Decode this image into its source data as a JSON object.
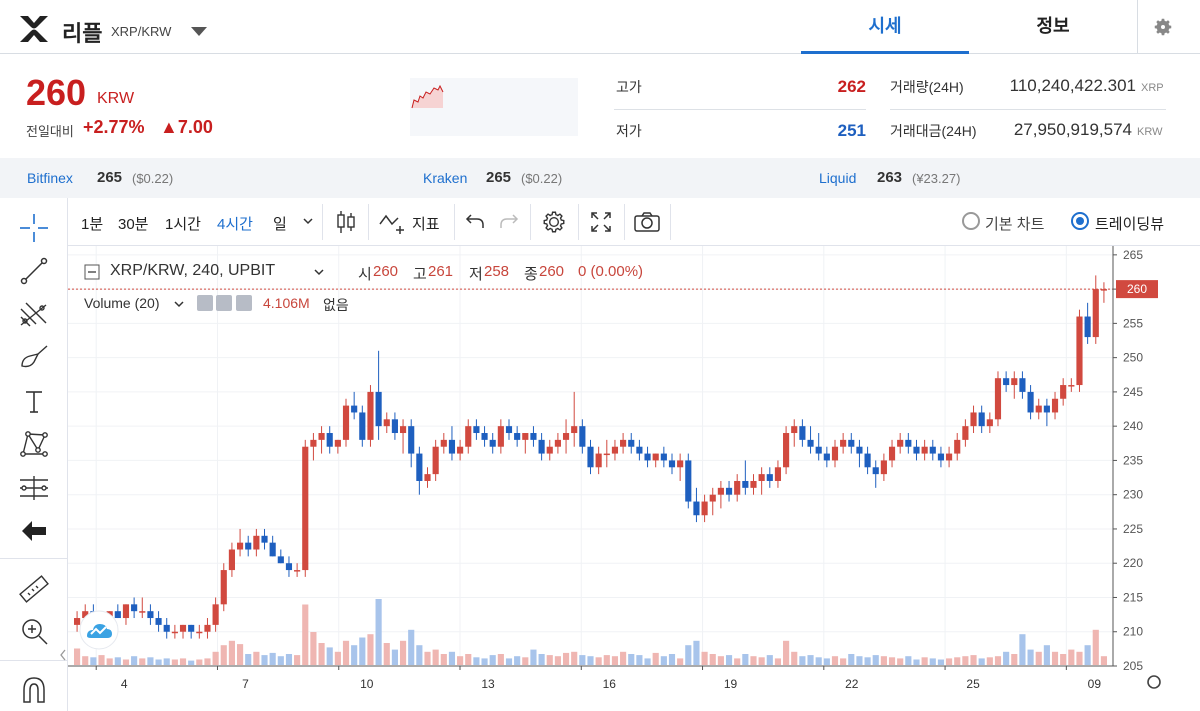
{
  "header": {
    "coin_name": "리플",
    "pair": "XRP/KRW",
    "tabs": [
      {
        "label": "시세",
        "active": true
      },
      {
        "label": "정보",
        "active": false
      }
    ]
  },
  "summary": {
    "price": "260",
    "unit": "KRW",
    "change_label": "전일대비",
    "change_pct": "+2.77%",
    "change_abs": "▲7.00",
    "high_label": "고가",
    "high": "262",
    "low_label": "저가",
    "low": "251",
    "volume_label": "거래량(24H)",
    "volume": "110,240,422.301",
    "volume_unit": "XRP",
    "amount_label": "거래대금(24H)",
    "amount": "27,950,919,574",
    "amount_unit": "KRW"
  },
  "exchanges": [
    {
      "name": "Bitfinex",
      "price": "265",
      "sub": "($0.22)"
    },
    {
      "name": "Kraken",
      "price": "265",
      "sub": "($0.22)"
    },
    {
      "name": "Liquid",
      "price": "263",
      "sub": "(¥23.27)"
    }
  ],
  "toolbar": {
    "intervals": [
      "1분",
      "30분",
      "1시간",
      "4시간",
      "일"
    ],
    "active_interval": "4시간",
    "indicator_label": "지표",
    "basic_chart_label": "기본 차트",
    "tradingview_label": "트레이딩뷰"
  },
  "legend": {
    "symbol": "XRP/KRW, 240, UPBIT",
    "o_label": "시",
    "o": "260",
    "h_label": "고",
    "h": "261",
    "l_label": "저",
    "l": "258",
    "c_label": "종",
    "c": "260",
    "change": "0 (0.00%)",
    "volume_title": "Volume (20)",
    "volume_value": "4.106M",
    "volume_none": "없음"
  },
  "colors": {
    "up": "#d1493f",
    "down": "#1e5fbf",
    "accent": "#1e6fce",
    "price_red": "#c81f1f"
  },
  "icons": [
    "crosshair-icon",
    "trendline-icon",
    "fib-icon",
    "brush-icon",
    "text-icon",
    "pattern-icon",
    "measure-icon",
    "back-arrow-icon",
    "ruler-icon",
    "zoom-in-icon",
    "magnet-icon",
    "candles-icon",
    "indicator-icon",
    "undo-icon",
    "redo-icon",
    "settings-icon",
    "fullscreen-icon",
    "camera-icon",
    "gear-icon"
  ],
  "chart_data": {
    "type": "candlestick",
    "current_price_label": "260",
    "y_ticks": [
      "265",
      "260",
      "255",
      "250",
      "245",
      "240",
      "235",
      "230",
      "225",
      "220",
      "215",
      "210",
      "205"
    ],
    "ylim": [
      205,
      266
    ],
    "x_ticks": [
      "4",
      "7",
      "10",
      "13",
      "16",
      "19",
      "22",
      "25",
      "09"
    ],
    "candles": [
      [
        211,
        213,
        210,
        212
      ],
      [
        212,
        214,
        211,
        213
      ],
      [
        213,
        214,
        211,
        211
      ],
      [
        211,
        213,
        210,
        212
      ],
      [
        212,
        213,
        211,
        213
      ],
      [
        213,
        214,
        212,
        212
      ],
      [
        212,
        214,
        211,
        214
      ],
      [
        214,
        215,
        212,
        213
      ],
      [
        213,
        215,
        212,
        213
      ],
      [
        213,
        214,
        211,
        212
      ],
      [
        212,
        213,
        210,
        211
      ],
      [
        211,
        212,
        209,
        210
      ],
      [
        210,
        211,
        209,
        210
      ],
      [
        210,
        211,
        209,
        211
      ],
      [
        211,
        211,
        209,
        210
      ],
      [
        210,
        211,
        209,
        210
      ],
      [
        210,
        212,
        209,
        211
      ],
      [
        211,
        215,
        210,
        214
      ],
      [
        214,
        220,
        213,
        219
      ],
      [
        219,
        223,
        218,
        222
      ],
      [
        222,
        225,
        221,
        223
      ],
      [
        223,
        224,
        221,
        222
      ],
      [
        222,
        225,
        221,
        224
      ],
      [
        224,
        225,
        222,
        223
      ],
      [
        223,
        224,
        221,
        221
      ],
      [
        221,
        222,
        220,
        220
      ],
      [
        220,
        221,
        218,
        219
      ],
      [
        219,
        220,
        218,
        219
      ],
      [
        219,
        238,
        218,
        237
      ],
      [
        237,
        239,
        235,
        238
      ],
      [
        238,
        240,
        236,
        239
      ],
      [
        239,
        240,
        236,
        237
      ],
      [
        237,
        238,
        236,
        238
      ],
      [
        238,
        244,
        237,
        243
      ],
      [
        243,
        245,
        241,
        242
      ],
      [
        242,
        243,
        237,
        238
      ],
      [
        238,
        246,
        237,
        245
      ],
      [
        245,
        251,
        238,
        240
      ],
      [
        240,
        242,
        239,
        241
      ],
      [
        241,
        242,
        238,
        239
      ],
      [
        239,
        241,
        236,
        240
      ],
      [
        240,
        241,
        234,
        236
      ],
      [
        236,
        237,
        230,
        232
      ],
      [
        232,
        234,
        231,
        233
      ],
      [
        233,
        238,
        232,
        237
      ],
      [
        237,
        239,
        236,
        238
      ],
      [
        238,
        240,
        235,
        236
      ],
      [
        236,
        238,
        235,
        237
      ],
      [
        237,
        241,
        236,
        240
      ],
      [
        240,
        241,
        238,
        239
      ],
      [
        239,
        240,
        237,
        238
      ],
      [
        238,
        239,
        236,
        237
      ],
      [
        237,
        241,
        236,
        240
      ],
      [
        240,
        241,
        238,
        239
      ],
      [
        239,
        240,
        237,
        238
      ],
      [
        238,
        239,
        236,
        239
      ],
      [
        239,
        240,
        237,
        238
      ],
      [
        238,
        239,
        235,
        236
      ],
      [
        236,
        238,
        235,
        237
      ],
      [
        237,
        239,
        236,
        238
      ],
      [
        238,
        241,
        236,
        239
      ],
      [
        239,
        245,
        237,
        240
      ],
      [
        240,
        241,
        236,
        237
      ],
      [
        237,
        238,
        233,
        234
      ],
      [
        234,
        237,
        233,
        236
      ],
      [
        236,
        238,
        234,
        236
      ],
      [
        236,
        238,
        235,
        237
      ],
      [
        237,
        239,
        236,
        238
      ],
      [
        238,
        239,
        236,
        237
      ],
      [
        237,
        238,
        235,
        236
      ],
      [
        236,
        237,
        234,
        235
      ],
      [
        235,
        236,
        234,
        236
      ],
      [
        236,
        237,
        234,
        235
      ],
      [
        235,
        236,
        233,
        234
      ],
      [
        234,
        236,
        232,
        235
      ],
      [
        235,
        236,
        228,
        229
      ],
      [
        229,
        231,
        226,
        227
      ],
      [
        227,
        230,
        226,
        229
      ],
      [
        229,
        231,
        227,
        230
      ],
      [
        230,
        232,
        228,
        231
      ],
      [
        231,
        232,
        229,
        230
      ],
      [
        230,
        233,
        229,
        232
      ],
      [
        232,
        235,
        230,
        231
      ],
      [
        231,
        233,
        230,
        232
      ],
      [
        232,
        234,
        230,
        233
      ],
      [
        233,
        234,
        231,
        232
      ],
      [
        232,
        235,
        231,
        234
      ],
      [
        234,
        240,
        233,
        239
      ],
      [
        239,
        241,
        237,
        240
      ],
      [
        240,
        241,
        237,
        238
      ],
      [
        238,
        240,
        236,
        237
      ],
      [
        237,
        239,
        235,
        236
      ],
      [
        236,
        237,
        234,
        235
      ],
      [
        235,
        238,
        234,
        237
      ],
      [
        237,
        239,
        236,
        238
      ],
      [
        238,
        239,
        236,
        237
      ],
      [
        237,
        238,
        234,
        236
      ],
      [
        236,
        237,
        233,
        234
      ],
      [
        234,
        235,
        231,
        233
      ],
      [
        233,
        236,
        232,
        235
      ],
      [
        235,
        238,
        234,
        237
      ],
      [
        237,
        239,
        236,
        238
      ],
      [
        238,
        239,
        236,
        237
      ],
      [
        237,
        238,
        235,
        236
      ],
      [
        236,
        238,
        235,
        237
      ],
      [
        237,
        238,
        235,
        236
      ],
      [
        236,
        237,
        234,
        235
      ],
      [
        235,
        237,
        234,
        236
      ],
      [
        236,
        239,
        235,
        238
      ],
      [
        238,
        241,
        237,
        240
      ],
      [
        240,
        243,
        239,
        242
      ],
      [
        242,
        243,
        239,
        240
      ],
      [
        240,
        242,
        239,
        241
      ],
      [
        241,
        248,
        240,
        247
      ],
      [
        247,
        248,
        245,
        246
      ],
      [
        246,
        248,
        244,
        247
      ],
      [
        247,
        248,
        244,
        245
      ],
      [
        245,
        246,
        241,
        242
      ],
      [
        242,
        244,
        241,
        243
      ],
      [
        243,
        244,
        240,
        242
      ],
      [
        242,
        245,
        241,
        244
      ],
      [
        244,
        247,
        243,
        246
      ],
      [
        246,
        247,
        245,
        246
      ],
      [
        246,
        257,
        245,
        256
      ],
      [
        256,
        258,
        252,
        253
      ],
      [
        253,
        262,
        252,
        260
      ],
      [
        260,
        261,
        258,
        260
      ]
    ],
    "volumes": [
      0.15,
      0.08,
      0.07,
      0.09,
      0.06,
      0.07,
      0.05,
      0.08,
      0.06,
      0.07,
      0.05,
      0.06,
      0.05,
      0.06,
      0.04,
      0.05,
      0.06,
      0.12,
      0.18,
      0.22,
      0.19,
      0.1,
      0.12,
      0.09,
      0.11,
      0.08,
      0.1,
      0.09,
      0.55,
      0.3,
      0.2,
      0.16,
      0.12,
      0.22,
      0.18,
      0.25,
      0.28,
      0.6,
      0.2,
      0.14,
      0.22,
      0.32,
      0.18,
      0.12,
      0.14,
      0.1,
      0.12,
      0.08,
      0.1,
      0.07,
      0.06,
      0.09,
      0.1,
      0.06,
      0.08,
      0.07,
      0.14,
      0.1,
      0.09,
      0.08,
      0.11,
      0.12,
      0.09,
      0.08,
      0.07,
      0.09,
      0.08,
      0.12,
      0.1,
      0.09,
      0.06,
      0.11,
      0.08,
      0.1,
      0.06,
      0.18,
      0.22,
      0.12,
      0.1,
      0.08,
      0.09,
      0.06,
      0.1,
      0.08,
      0.07,
      0.09,
      0.06,
      0.22,
      0.12,
      0.08,
      0.09,
      0.07,
      0.06,
      0.08,
      0.06,
      0.1,
      0.08,
      0.07,
      0.09,
      0.08,
      0.07,
      0.06,
      0.08,
      0.05,
      0.07,
      0.06,
      0.05,
      0.06,
      0.07,
      0.08,
      0.09,
      0.06,
      0.07,
      0.08,
      0.12,
      0.1,
      0.28,
      0.14,
      0.12,
      0.18,
      0.12,
      0.1,
      0.14,
      0.12,
      0.18,
      0.32,
      0.08
    ]
  }
}
